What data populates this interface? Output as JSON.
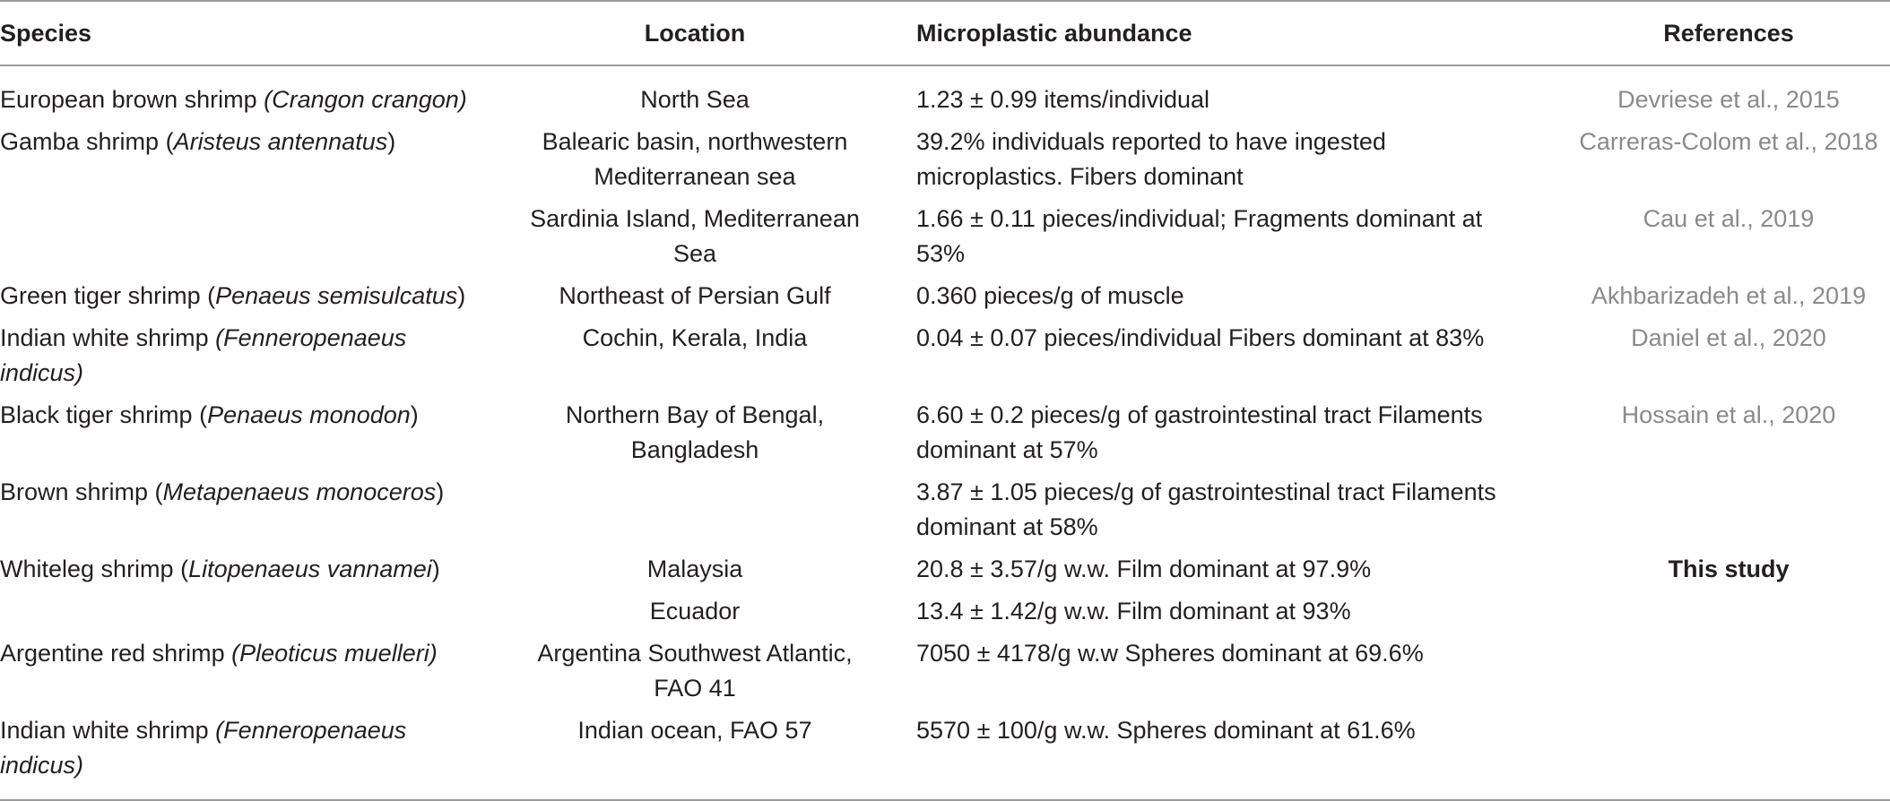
{
  "headers": {
    "species": "Species",
    "location": "Location",
    "abundance": "Microplastic abundance",
    "references": "References"
  },
  "rows": [
    {
      "common": "European brown shrimp ",
      "sci": "(Crangon crangon)",
      "sci_open": "",
      "sci_close": "",
      "location": "North Sea",
      "abundance": "1.23 ± 0.99 items/individual",
      "reference": "Devriese et al., 2015"
    },
    {
      "common": "Gamba shrimp ",
      "sci_open": "(",
      "sci": "Aristeus antennatus",
      "sci_close": ")",
      "location": "Balearic basin, northwestern Mediterranean sea",
      "abundance": "39.2% individuals reported to have ingested microplastics. Fibers dominant",
      "reference": "Carreras-Colom et al., 2018"
    },
    {
      "common": "",
      "sci_open": "",
      "sci": "",
      "sci_close": "",
      "location": "Sardinia Island, Mediterranean Sea",
      "abundance": "1.66 ± 0.11 pieces/individual; Fragments dominant at 53%",
      "reference": "Cau et al., 2019"
    },
    {
      "common": "Green tiger shrimp ",
      "sci_open": "(",
      "sci": "Penaeus semisulcatus",
      "sci_close": ")",
      "location": "Northeast of Persian Gulf",
      "abundance": "0.360 pieces/g of muscle",
      "reference": "Akhbarizadeh et al., 2019"
    },
    {
      "common": "Indian white shrimp ",
      "sci_open": "",
      "sci": "(Fenneropenaeus indicus)",
      "sci_close": "",
      "location": "Cochin, Kerala, India",
      "abundance": "0.04 ± 0.07 pieces/individual Fibers dominant at 83%",
      "reference": "Daniel et al., 2020"
    },
    {
      "common": "Black tiger shrimp ",
      "sci_open": "(",
      "sci": "Penaeus monodon",
      "sci_close": ")",
      "location": "Northern Bay of Bengal, Bangladesh",
      "abundance": "6.60 ± 0.2 pieces/g of gastrointestinal tract Filaments dominant at 57%",
      "reference": "Hossain et al., 2020"
    },
    {
      "common": "Brown shrimp ",
      "sci_open": "(",
      "sci": "Metapenaeus monoceros",
      "sci_close": ")",
      "location": "",
      "abundance": "3.87 ± 1.05 pieces/g of gastrointestinal tract Filaments dominant at 58%",
      "reference": ""
    },
    {
      "common": "Whiteleg shrimp ",
      "sci_open": "(",
      "sci": "Litopenaeus vannamei",
      "sci_close": ")",
      "location": "Malaysia",
      "abundance": "20.8 ± 3.57/g w.w. Film dominant at 97.9%",
      "reference": "This study"
    },
    {
      "common": "",
      "sci_open": "",
      "sci": "",
      "sci_close": "",
      "location": "Ecuador",
      "abundance": "13.4 ± 1.42/g w.w. Film dominant at 93%",
      "reference": ""
    },
    {
      "common": "Argentine red shrimp ",
      "sci_open": "",
      "sci": "(Pleoticus muelleri)",
      "sci_close": "",
      "location": "Argentina Southwest Atlantic, FAO 41",
      "abundance": "7050 ± 4178/g w.w Spheres dominant at 69.6%",
      "reference": ""
    },
    {
      "common": "Indian white shrimp ",
      "sci_open": "",
      "sci": "(Fenneropenaeus indicus)",
      "sci_close": "",
      "location": "Indian ocean, FAO 57",
      "abundance": "5570 ± 100/g w.w. Spheres dominant at 61.6%",
      "reference": ""
    }
  ]
}
